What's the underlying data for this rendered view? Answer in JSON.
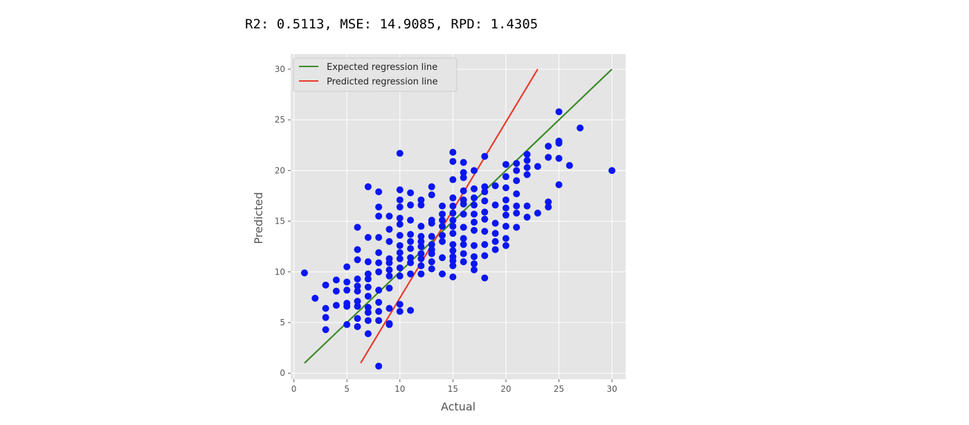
{
  "header": {
    "metrics_text": "R2: 0.5113, MSE: 14.9085, RPD: 1.4305"
  },
  "chart_data": {
    "type": "scatter",
    "xlabel": "Actual",
    "ylabel": "Predicted",
    "xlim": [
      -0.3,
      31.3
    ],
    "ylim": [
      -0.6,
      31.5
    ],
    "x_ticks": [
      0,
      5,
      10,
      15,
      20,
      25,
      30
    ],
    "y_ticks": [
      0,
      5,
      10,
      15,
      20,
      25,
      30
    ],
    "grid": true,
    "legend_position": "top-left",
    "colors": {
      "points": "#0a16f2",
      "expected_line": "#3a8a27",
      "predicted_line": "#e8392b",
      "plot_background": "#e5e5e5",
      "grid": "#ffffff"
    },
    "series": [
      {
        "name": "Expected regression line",
        "type": "line",
        "color": "#3a8a27",
        "points": [
          [
            1,
            1
          ],
          [
            30,
            30
          ]
        ]
      },
      {
        "name": "Predicted regression line",
        "type": "line",
        "color": "#e8392b",
        "points": [
          [
            6.3,
            1.0
          ],
          [
            23,
            30.0
          ]
        ]
      }
    ],
    "scatter_points": [
      [
        1,
        9.9
      ],
      [
        2,
        7.4
      ],
      [
        3,
        8.7
      ],
      [
        3,
        6.4
      ],
      [
        3,
        5.5
      ],
      [
        3,
        4.3
      ],
      [
        4,
        9.2
      ],
      [
        4,
        8.1
      ],
      [
        4,
        6.7
      ],
      [
        5,
        10.5
      ],
      [
        5,
        9.0
      ],
      [
        5,
        8.2
      ],
      [
        5,
        6.9
      ],
      [
        5,
        6.6
      ],
      [
        5,
        4.8
      ],
      [
        6,
        14.4
      ],
      [
        6,
        12.2
      ],
      [
        6,
        11.2
      ],
      [
        6,
        9.3
      ],
      [
        6,
        8.6
      ],
      [
        6,
        8.1
      ],
      [
        6,
        7.1
      ],
      [
        6,
        6.6
      ],
      [
        6,
        5.4
      ],
      [
        6,
        4.6
      ],
      [
        7,
        18.4
      ],
      [
        7,
        13.4
      ],
      [
        7,
        11.0
      ],
      [
        7,
        9.8
      ],
      [
        7,
        9.3
      ],
      [
        7,
        8.5
      ],
      [
        7,
        7.6
      ],
      [
        7,
        6.5
      ],
      [
        7,
        6.0
      ],
      [
        7,
        5.2
      ],
      [
        7,
        3.9
      ],
      [
        8,
        17.9
      ],
      [
        8,
        16.4
      ],
      [
        8,
        15.5
      ],
      [
        8,
        13.4
      ],
      [
        8,
        11.9
      ],
      [
        8,
        10.9
      ],
      [
        8,
        10.0
      ],
      [
        8,
        8.2
      ],
      [
        8,
        7.0
      ],
      [
        8,
        6.1
      ],
      [
        8,
        5.2
      ],
      [
        8,
        0.7
      ],
      [
        9,
        15.5
      ],
      [
        9,
        14.2
      ],
      [
        9,
        13.0
      ],
      [
        9,
        11.3
      ],
      [
        9,
        10.9
      ],
      [
        9,
        10.2
      ],
      [
        9,
        9.6
      ],
      [
        9,
        8.4
      ],
      [
        9,
        6.4
      ],
      [
        9,
        4.9
      ],
      [
        9,
        4.8
      ],
      [
        10,
        21.7
      ],
      [
        10,
        18.1
      ],
      [
        10,
        17.1
      ],
      [
        10,
        16.4
      ],
      [
        10,
        15.3
      ],
      [
        10,
        14.7
      ],
      [
        10,
        13.6
      ],
      [
        10,
        12.6
      ],
      [
        10,
        11.9
      ],
      [
        10,
        11.3
      ],
      [
        10,
        10.4
      ],
      [
        10,
        9.6
      ],
      [
        10,
        6.8
      ],
      [
        10,
        6.1
      ],
      [
        11,
        17.8
      ],
      [
        11,
        16.6
      ],
      [
        11,
        15.1
      ],
      [
        11,
        13.7
      ],
      [
        11,
        13.0
      ],
      [
        11,
        12.3
      ],
      [
        11,
        11.4
      ],
      [
        11,
        10.9
      ],
      [
        11,
        9.8
      ],
      [
        11,
        6.2
      ],
      [
        12,
        17.1
      ],
      [
        12,
        16.6
      ],
      [
        12,
        14.5
      ],
      [
        12,
        13.5
      ],
      [
        12,
        13.0
      ],
      [
        12,
        12.5
      ],
      [
        12,
        11.8
      ],
      [
        12,
        11.3
      ],
      [
        12,
        10.6
      ],
      [
        12,
        9.8
      ],
      [
        13,
        18.4
      ],
      [
        13,
        17.6
      ],
      [
        13,
        15.1
      ],
      [
        13,
        14.8
      ],
      [
        13,
        13.5
      ],
      [
        13,
        12.7
      ],
      [
        13,
        12.2
      ],
      [
        13,
        11.8
      ],
      [
        13,
        11.0
      ],
      [
        13,
        10.3
      ],
      [
        14,
        16.5
      ],
      [
        14,
        15.7
      ],
      [
        14,
        15.1
      ],
      [
        14,
        14.5
      ],
      [
        14,
        13.6
      ],
      [
        14,
        13.0
      ],
      [
        14,
        11.4
      ],
      [
        14,
        9.8
      ],
      [
        15,
        21.8
      ],
      [
        15,
        20.9
      ],
      [
        15,
        19.1
      ],
      [
        15,
        17.3
      ],
      [
        15,
        16.5
      ],
      [
        15,
        15.8
      ],
      [
        15,
        15.1
      ],
      [
        15,
        14.5
      ],
      [
        15,
        13.8
      ],
      [
        15,
        12.7
      ],
      [
        15,
        12.1
      ],
      [
        15,
        11.5
      ],
      [
        15,
        11.1
      ],
      [
        15,
        10.6
      ],
      [
        15,
        9.5
      ],
      [
        16,
        20.8
      ],
      [
        16,
        19.8
      ],
      [
        16,
        19.3
      ],
      [
        16,
        18.0
      ],
      [
        16,
        17.1
      ],
      [
        16,
        16.7
      ],
      [
        16,
        15.7
      ],
      [
        16,
        14.4
      ],
      [
        16,
        13.3
      ],
      [
        16,
        12.7
      ],
      [
        16,
        11.8
      ],
      [
        16,
        11.0
      ],
      [
        17,
        20.0
      ],
      [
        17,
        18.2
      ],
      [
        17,
        17.3
      ],
      [
        17,
        16.6
      ],
      [
        17,
        15.7
      ],
      [
        17,
        14.9
      ],
      [
        17,
        14.1
      ],
      [
        17,
        12.6
      ],
      [
        17,
        11.5
      ],
      [
        17,
        10.8
      ],
      [
        17,
        10.2
      ],
      [
        18,
        21.4
      ],
      [
        18,
        18.4
      ],
      [
        18,
        17.9
      ],
      [
        18,
        17.0
      ],
      [
        18,
        15.9
      ],
      [
        18,
        15.2
      ],
      [
        18,
        14.0
      ],
      [
        18,
        12.7
      ],
      [
        18,
        11.6
      ],
      [
        18,
        9.4
      ],
      [
        19,
        18.5
      ],
      [
        19,
        16.6
      ],
      [
        19,
        14.8
      ],
      [
        19,
        13.8
      ],
      [
        19,
        13.0
      ],
      [
        19,
        12.2
      ],
      [
        20,
        20.6
      ],
      [
        20,
        19.4
      ],
      [
        20,
        18.3
      ],
      [
        20,
        17.1
      ],
      [
        20,
        16.3
      ],
      [
        20,
        15.6
      ],
      [
        20,
        14.5
      ],
      [
        20,
        13.3
      ],
      [
        20,
        12.6
      ],
      [
        21,
        20.7
      ],
      [
        21,
        20.0
      ],
      [
        21,
        19.0
      ],
      [
        21,
        17.7
      ],
      [
        21,
        16.5
      ],
      [
        21,
        15.8
      ],
      [
        21,
        14.4
      ],
      [
        22,
        21.6
      ],
      [
        22,
        21.0
      ],
      [
        22,
        20.3
      ],
      [
        22,
        19.6
      ],
      [
        22,
        16.5
      ],
      [
        22,
        15.4
      ],
      [
        23,
        20.4
      ],
      [
        23,
        15.8
      ],
      [
        24,
        22.4
      ],
      [
        24,
        21.3
      ],
      [
        24,
        16.9
      ],
      [
        24,
        16.4
      ],
      [
        25,
        25.8
      ],
      [
        25,
        22.9
      ],
      [
        25,
        22.7
      ],
      [
        25,
        21.2
      ],
      [
        25,
        18.6
      ],
      [
        26,
        20.5
      ],
      [
        27,
        24.2
      ],
      [
        30,
        20.0
      ]
    ]
  }
}
